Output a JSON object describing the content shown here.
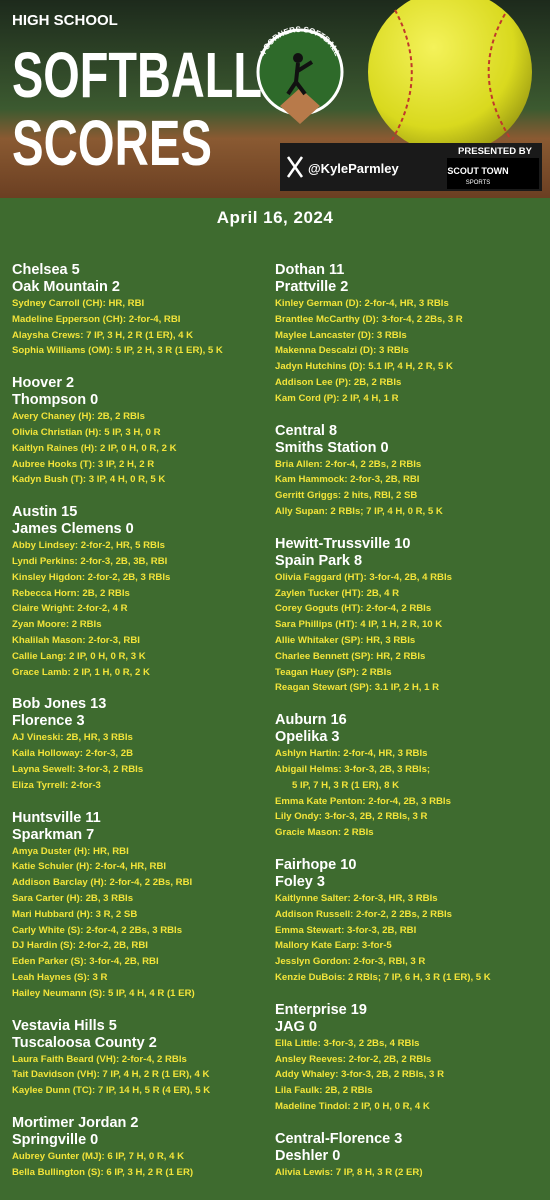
{
  "header": {
    "kicker": "HIGH SCHOOL",
    "title_line_1": "SOFTBALL",
    "title_line_2": "SCORES",
    "logo": "4 CORNERS SOFTBALL",
    "handle": "@KyleParmley",
    "presented_by": "PRESENTED BY",
    "sponsor": "SCOUT TOWN",
    "sponsor_sub": "SPORTS"
  },
  "date": "April 16, 2024",
  "columns": [
    [
      {
        "teams": [
          "Chelsea 5",
          "Oak Mountain 2"
        ],
        "lines": [
          "Sydney Carroll (CH): HR, RBI",
          "Madeline Epperson (CH): 2-for-4, RBI",
          "Alaysha Crews: 7 IP, 3 H, 2 R (1 ER), 4 K",
          "Sophia Williams (OM): 5 IP, 2 H, 3 R (1 ER), 5 K"
        ]
      },
      {
        "teams": [
          "Hoover 2",
          "Thompson 0"
        ],
        "lines": [
          "Avery Chaney (H): 2B, 2 RBIs",
          "Olivia Christian (H): 5 IP, 3 H, 0 R",
          "Kaitlyn Raines (H): 2 IP, 0 H, 0 R, 2 K",
          "Aubree Hooks (T): 3 IP, 2 H, 2 R",
          "Kadyn Bush (T): 3 IP, 4 H, 0 R, 5 K"
        ]
      },
      {
        "teams": [
          "Austin 15",
          "James Clemens 0"
        ],
        "lines": [
          "Abby Lindsey: 2-for-2, HR, 5 RBIs",
          "Lyndi Perkins: 2-for-3, 2B, 3B, RBI",
          "Kinsley Higdon: 2-for-2, 2B, 3 RBIs",
          "Rebecca Horn: 2B, 2 RBIs",
          "Claire Wright: 2-for-2, 4 R",
          "Zyan Moore: 2 RBIs",
          "Khalilah Mason: 2-for-3, RBI",
          "Callie Lang: 2 IP, 0 H, 0 R, 3 K",
          "Grace Lamb: 2 IP, 1 H, 0 R, 2 K"
        ]
      },
      {
        "teams": [
          "Bob Jones 13",
          "Florence 3"
        ],
        "lines": [
          "AJ Vineski: 2B, HR, 3 RBIs",
          "Kaila Holloway: 2-for-3, 2B",
          "Layna Sewell: 3-for-3, 2 RBIs",
          "Eliza Tyrrell: 2-for-3"
        ]
      },
      {
        "teams": [
          "Huntsville 11",
          "Sparkman 7"
        ],
        "lines": [
          "Amya Duster (H): HR, RBI",
          "Katie Schuler (H): 2-for-4, HR, RBI",
          "Addison Barclay (H): 2-for-4, 2 2Bs, RBI",
          "Sara Carter (H): 2B, 3 RBIs",
          "Mari Hubbard (H): 3 R, 2 SB",
          "Carly White (S): 2-for-4, 2 2Bs, 3 RBIs",
          "DJ Hardin (S): 2-for-2, 2B, RBI",
          "Eden Parker (S): 3-for-4, 2B, RBI",
          "Leah Haynes (S): 3 R",
          "Hailey Neumann (S): 5 IP, 4 H, 4 R (1 ER)"
        ]
      },
      {
        "teams": [
          "Vestavia Hills 5",
          "Tuscaloosa County 2"
        ],
        "lines": [
          "Laura Faith Beard (VH): 2-for-4, 2 RBIs",
          "Tait Davidson (VH): 7 IP, 4 H, 2 R (1 ER), 4 K",
          "Kaylee Dunn (TC): 7 IP, 14 H, 5 R (4 ER), 5 K"
        ]
      },
      {
        "teams": [
          "Mortimer Jordan 2",
          "Springville 0"
        ],
        "lines": [
          "Aubrey Gunter (MJ): 6 IP, 7 H, 0 R, 4 K",
          "Bella Bullington (S): 6 IP, 3 H, 2 R (1 ER)"
        ]
      }
    ],
    [
      {
        "teams": [
          "Dothan 11",
          "Prattville 2"
        ],
        "lines": [
          "Kinley German (D): 2-for-4, HR, 3 RBIs",
          "Brantlee McCarthy (D): 3-for-4, 2 2Bs, 3 R",
          "Maylee Lancaster (D): 3 RBIs",
          "Makenna Descalzi (D): 3 RBIs",
          "Jadyn Hutchins (D): 5.1 IP, 4 H, 2 R, 5 K",
          "Addison Lee (P): 2B, 2 RBIs",
          "Kam Cord (P): 2 IP, 4 H, 1 R"
        ]
      },
      {
        "teams": [
          "Central 8",
          "Smiths Station 0"
        ],
        "lines": [
          "Bria Allen: 2-for-4, 2 2Bs, 2 RBIs",
          "Kam Hammock: 2-for-3, 2B, RBI",
          "Gerritt Griggs: 2 hits, RBI, 2 SB",
          "Ally Supan: 2 RBIs; 7 IP, 4 H, 0 R, 5 K"
        ]
      },
      {
        "teams": [
          "Hewitt-Trussville 10",
          "Spain Park 8"
        ],
        "lines": [
          "Olivia Faggard (HT): 3-for-4, 2B, 4 RBIs",
          "Zaylen Tucker (HT): 2B, 4 R",
          "Corey Goguts (HT): 2-for-4, 2 RBIs",
          "Sara Phillips (HT): 4 IP, 1 H, 2 R, 10 K",
          "Allie Whitaker (SP): HR, 3 RBIs",
          "Charlee Bennett (SP): HR, 2 RBIs",
          "Teagan Huey (SP): 2 RBIs",
          "Reagan Stewart (SP): 3.1 IP, 2 H, 1 R"
        ]
      },
      {
        "teams": [
          "Auburn 16",
          "Opelika 3"
        ],
        "lines": [
          "Ashlyn Hartin: 2-for-4, HR, 3 RBIs",
          "Abigail Helms: 3-for-3, 2B, 3 RBIs;",
          "5 IP, 7 H, 3 R (1 ER), 8 K",
          "Emma Kate Penton: 2-for-4, 2B, 3 RBIs",
          "Lily Ondy: 3-for-3, 2B, 2 RBIs, 3 R",
          "Gracie Mason: 2 RBIs"
        ]
      },
      {
        "teams": [
          "Fairhope 10",
          "Foley 3"
        ],
        "lines": [
          "Kaitlynne Salter: 2-for-3, HR, 3 RBIs",
          "Addison Russell: 2-for-2, 2 2Bs, 2 RBIs",
          "Emma Stewart: 3-for-3, 2B, RBI",
          "Mallory Kate Earp: 3-for-5",
          "Jesslyn Gordon: 2-for-3, RBI, 3 R",
          "Kenzie DuBois: 2 RBIs; 7 IP, 6 H, 3 R (1 ER), 5 K"
        ]
      },
      {
        "teams": [
          "Enterprise 19",
          "JAG 0"
        ],
        "lines": [
          "Ella Little: 3-for-3, 2 2Bs, 4 RBIs",
          "Ansley Reeves: 2-for-2, 2B, 2 RBIs",
          "Addy Whaley: 3-for-3, 2B, 2 RBIs, 3 R",
          "Lila Faulk: 2B, 2 RBIs",
          "Madeline Tindol: 2 IP, 0 H, 0 R, 4 K"
        ]
      },
      {
        "teams": [
          "Central-Florence 3",
          "Deshler 0"
        ],
        "lines": [
          "Alivia Lewis: 7 IP, 8 H, 3 R (2 ER)"
        ]
      }
    ]
  ]
}
